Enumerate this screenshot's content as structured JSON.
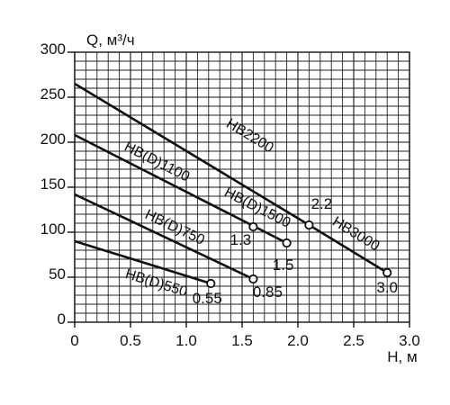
{
  "chart_data": {
    "type": "line",
    "xlabel": "H, м",
    "ylabel": "Q, м³/ч",
    "xlim": [
      0,
      3.0
    ],
    "ylim": [
      0,
      300
    ],
    "xticks": [
      "0",
      "0.5",
      "1.0",
      "1.5",
      "2.0",
      "2.5",
      "3.0"
    ],
    "yticks": [
      "0",
      "50",
      "100",
      "150",
      "200",
      "250",
      "300"
    ],
    "grid": true,
    "series": [
      {
        "name": "HB2200",
        "x": [
          0,
          2.1
        ],
        "y": [
          265,
          108
        ]
      },
      {
        "name": "HB(D)1100",
        "x": [
          0,
          1.9
        ],
        "y": [
          208,
          88
        ]
      },
      {
        "name": "HB(D)1500",
        "x": [
          0,
          1.9
        ],
        "y": [
          208,
          88
        ]
      },
      {
        "name": "HB3000",
        "x": [
          2.1,
          2.8
        ],
        "y": [
          108,
          55
        ]
      },
      {
        "name": "HB(D)750",
        "x": [
          0,
          1.6
        ],
        "y": [
          142,
          48
        ]
      },
      {
        "name": "HB(D)550",
        "x": [
          0,
          1.22
        ],
        "y": [
          90,
          43
        ]
      }
    ],
    "points": [
      {
        "label": "2.2",
        "x": 2.1,
        "y": 108
      },
      {
        "label": "1.3",
        "x": 1.6,
        "y": 106
      },
      {
        "label": "1.5",
        "x": 1.9,
        "y": 88
      },
      {
        "label": "3.0",
        "x": 2.8,
        "y": 55
      },
      {
        "label": "0.85",
        "x": 1.6,
        "y": 48
      },
      {
        "label": "0.55",
        "x": 1.22,
        "y": 43
      }
    ]
  }
}
